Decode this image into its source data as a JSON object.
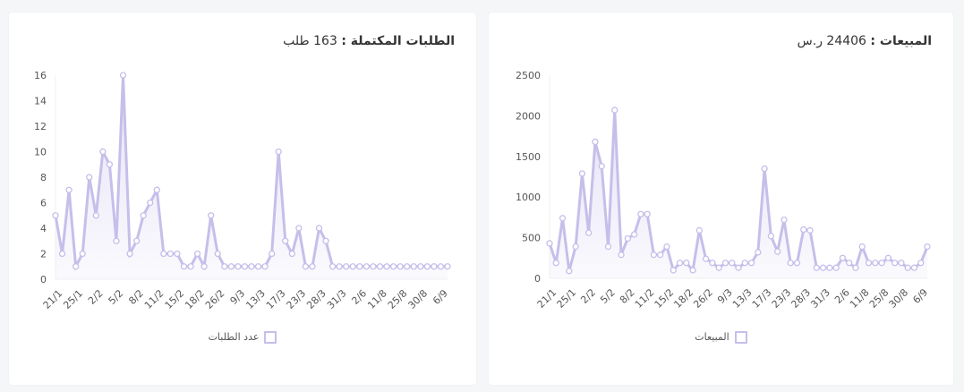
{
  "colors": {
    "line": "#c5bfea",
    "point_fill": "#ffffff"
  },
  "chart_data": [
    {
      "type": "line",
      "title_label": "الطلبات المكتملة :",
      "title_value": "163 طلب",
      "legend": "عدد الطلبات",
      "ylim": [
        0,
        16
      ],
      "yticks": [
        0,
        2,
        4,
        6,
        8,
        10,
        12,
        14,
        16
      ],
      "xtick_interval": 3,
      "xtick_labels": [
        "21/1",
        "25/1",
        "2/2",
        "5/2",
        "8/2",
        "11/2",
        "15/2",
        "18/2",
        "26/2",
        "9/3",
        "13/3",
        "17/3",
        "23/3",
        "28/3",
        "31/3",
        "2/6",
        "11/8",
        "25/8",
        "30/8",
        "6/9"
      ],
      "values": [
        5,
        2,
        7,
        1,
        2,
        8,
        5,
        10,
        9,
        3,
        16,
        2,
        3,
        5,
        6,
        7,
        2,
        2,
        2,
        1,
        1,
        2,
        1,
        5,
        2,
        1,
        1,
        1,
        1,
        1,
        1,
        1,
        2,
        10,
        3,
        2,
        4,
        1,
        1,
        4,
        3,
        1,
        1,
        1,
        1,
        1,
        1,
        1,
        1,
        1,
        1,
        1,
        1,
        1,
        1,
        1,
        1,
        1,
        1
      ]
    },
    {
      "type": "line",
      "title_label": "المبيعات :",
      "title_value": "24406 ر.س",
      "legend": "المبيعات",
      "ylim": [
        0,
        2500
      ],
      "yticks": [
        0,
        500,
        1000,
        1500,
        2000,
        2500
      ],
      "xtick_interval": 3,
      "xtick_labels": [
        "21/1",
        "25/1",
        "2/2",
        "5/2",
        "8/2",
        "11/2",
        "15/2",
        "18/2",
        "26/2",
        "9/3",
        "13/3",
        "17/3",
        "23/3",
        "28/3",
        "31/3",
        "2/6",
        "11/8",
        "25/8",
        "30/8",
        "6/9"
      ],
      "values": [
        430,
        190,
        740,
        90,
        390,
        1290,
        560,
        1680,
        1380,
        390,
        2070,
        290,
        490,
        540,
        790,
        790,
        290,
        290,
        390,
        100,
        190,
        190,
        100,
        590,
        240,
        190,
        130,
        190,
        190,
        130,
        190,
        190,
        320,
        1350,
        520,
        330,
        720,
        190,
        190,
        600,
        590,
        130,
        130,
        130,
        130,
        250,
        190,
        130,
        390,
        190,
        190,
        190,
        250,
        190,
        190,
        130,
        130,
        190,
        390
      ]
    }
  ]
}
